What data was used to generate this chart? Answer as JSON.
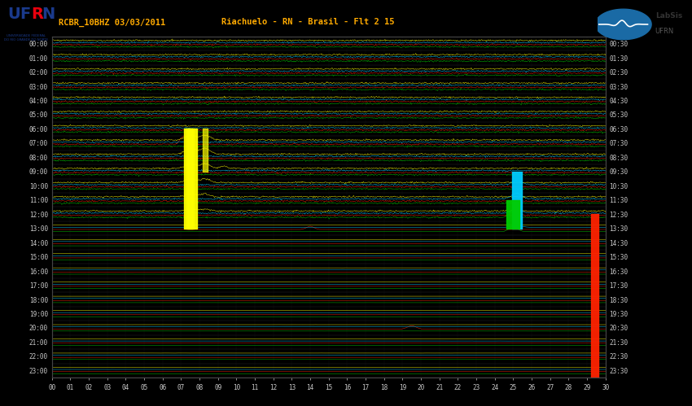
{
  "title_left": "RCBR_10BHZ 03/03/2011",
  "title_right": "Riachuelo - RN - Brasil - Flt 2 15",
  "bg_color": "#000000",
  "trace_colors": [
    "#00cc00",
    "#ff2200",
    "#00ccff",
    "#ffff00"
  ],
  "n_hours": 24,
  "n_stations": 30,
  "ylabel_left_times": [
    "00:00",
    "01:00",
    "02:00",
    "03:00",
    "04:00",
    "05:00",
    "06:00",
    "07:00",
    "08:00",
    "09:00",
    "10:00",
    "11:00",
    "12:00",
    "13:00",
    "14:00",
    "15:00",
    "16:00",
    "17:00",
    "18:00",
    "19:00",
    "20:00",
    "21:00",
    "22:00",
    "23:00"
  ],
  "ylabel_right_times": [
    "00:30",
    "01:30",
    "02:30",
    "03:30",
    "04:30",
    "05:30",
    "06:30",
    "07:30",
    "08:30",
    "09:30",
    "10:30",
    "11:30",
    "12:30",
    "13:30",
    "14:30",
    "15:30",
    "16:30",
    "17:30",
    "18:30",
    "19:30",
    "20:30",
    "21:30",
    "22:30",
    "23:30"
  ],
  "xtick_labels": [
    "00",
    "01",
    "02",
    "03",
    "04",
    "05",
    "06",
    "07",
    "08",
    "09",
    "10",
    "11",
    "12",
    "13",
    "14",
    "15",
    "16",
    "17",
    "18",
    "19",
    "20",
    "21",
    "22",
    "23",
    "24",
    "25",
    "26",
    "27",
    "28",
    "29",
    "30"
  ],
  "text_color": "#ffaa00",
  "label_color": "#cccccc",
  "noise_active_hours": 13
}
